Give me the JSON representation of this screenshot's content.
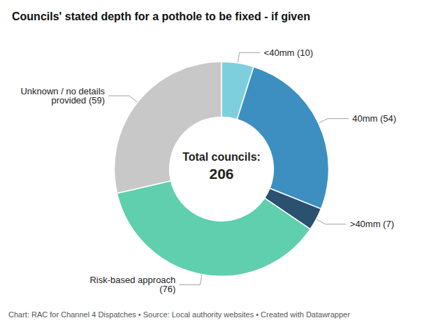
{
  "chart_data": {
    "type": "pie",
    "title": "Councils' stated depth for a pothole to be fixed - if given",
    "categories": [
      "<40mm (10)",
      "40mm (54)",
      ">40mm (7)",
      "Risk-based approach\n(76)",
      "Unknown / no details\nprovided (59)"
    ],
    "values": [
      10,
      54,
      7,
      76,
      59
    ],
    "colors": [
      "#7ecfdd",
      "#3c8fc0",
      "#2b5070",
      "#5fcfad",
      "#c8c8c8"
    ],
    "annotations": [
      "Total councils:",
      "206",
      "Chart: RAC for Channel 4 Dispatches • Source: Local authority websites • Created with Datawrapper"
    ]
  }
}
